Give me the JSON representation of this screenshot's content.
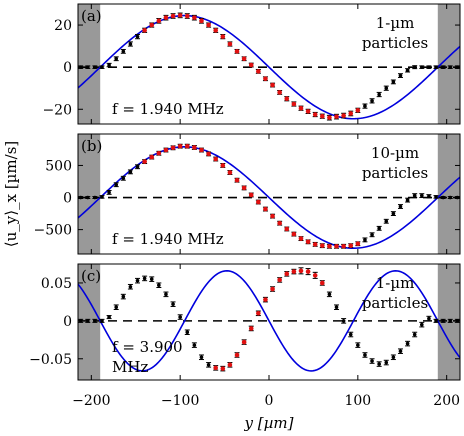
{
  "figure": {
    "xlabel": "y [µm]",
    "ylabel": "⟨u_y⟩_x [µm/s]",
    "x_ticks": [
      "−200",
      "−100",
      "0",
      "100",
      "200"
    ]
  },
  "chart_data": [
    {
      "type": "scatter",
      "panel_label": "(a)",
      "annotation_lines": [
        "1-µm",
        "particles"
      ],
      "freq_label": "f = 1.940 MHz",
      "xlim": [
        -215,
        215
      ],
      "ylim": [
        -27,
        30
      ],
      "yticks": [
        -20,
        0,
        20
      ],
      "ytick_labels": [
        "−20",
        "0",
        "20"
      ],
      "shaded_x": [
        [
          -215,
          -190
        ],
        [
          190,
          215
        ]
      ],
      "zero_line": "dashed",
      "series": [
        {
          "role": "black-points",
          "x": [
            -212,
            -204,
            -196,
            -188,
            -180,
            -172,
            -164,
            -156,
            -148,
            -140,
            -132,
            -124,
            -116,
            -108,
            -100,
            -92,
            -84,
            -76,
            -68,
            -60,
            -52,
            -44,
            -36,
            -28,
            -20,
            -12,
            -4,
            4,
            12,
            20,
            28,
            36,
            44,
            52,
            60,
            68,
            76,
            84,
            92,
            100,
            108,
            116,
            124,
            132,
            140,
            148,
            156,
            164,
            172,
            180,
            188,
            196,
            204,
            212
          ],
          "y": [
            0,
            0,
            0,
            0,
            1,
            4,
            7.5,
            11,
            14.5,
            17.5,
            20,
            22,
            23.5,
            24.3,
            24.6,
            24.3,
            23.5,
            22,
            20,
            17.5,
            14.5,
            11,
            7.5,
            4,
            1,
            -2,
            -5.5,
            -8.5,
            -12,
            -15,
            -17.5,
            -19.5,
            -21,
            -22.5,
            -23.3,
            -24,
            -23.5,
            -23,
            -22,
            -20.5,
            -18.5,
            -16,
            -13,
            -10,
            -7,
            -4,
            -1.5,
            0,
            0,
            0,
            0,
            0,
            0,
            0
          ],
          "err": [
            0.6,
            0.6,
            0.6,
            0.6,
            0.8,
            0.9,
            0.9,
            1.0,
            1.0,
            1.0,
            1.0,
            1.1,
            1.1,
            1.1,
            1.1,
            1.1,
            1.1,
            1.1,
            1.0,
            1.0,
            1.0,
            1.0,
            0.9,
            0.9,
            0.9,
            0.9,
            0.9,
            0.9,
            0.9,
            1.0,
            1.0,
            1.0,
            1.0,
            1.0,
            1.0,
            1.1,
            1.1,
            1.1,
            1.1,
            1.0,
            1.0,
            1.0,
            1.0,
            1.0,
            0.9,
            0.9,
            0.8,
            0.7,
            0.6,
            0.6,
            0.6,
            0.6,
            0.6,
            0.6
          ]
        },
        {
          "role": "red-points",
          "x": [
            -140,
            -132,
            -124,
            -116,
            -108,
            -100,
            -92,
            -84,
            -76,
            -68,
            -60,
            -52,
            -44,
            -36,
            -28,
            -20,
            -12,
            -4,
            4,
            12,
            20,
            28,
            36,
            44,
            52,
            60,
            68,
            76,
            84,
            92,
            100
          ],
          "y": [
            17.5,
            20,
            22,
            23.5,
            24.3,
            24.6,
            24.3,
            23.5,
            22,
            20,
            17.5,
            14.5,
            11,
            7.5,
            4,
            1,
            -2,
            -5.5,
            -8.5,
            -12,
            -15,
            -17.5,
            -19.5,
            -21,
            -22.5,
            -23.3,
            -24,
            -23.5,
            -23,
            -22,
            -20.5
          ]
        },
        {
          "role": "model-curve",
          "type": "sine",
          "amplitude": 24.5,
          "wavelength": 380,
          "phase_zero": 0
        }
      ]
    },
    {
      "type": "scatter",
      "panel_label": "(b)",
      "annotation_lines": [
        "10-µm",
        "particles"
      ],
      "freq_label": "f = 1.940 MHz",
      "xlim": [
        -215,
        215
      ],
      "ylim": [
        -880,
        990
      ],
      "yticks": [
        -500,
        0,
        500
      ],
      "ytick_labels": [
        "−500",
        "0",
        "500"
      ],
      "shaded_x": [
        [
          -215,
          -190
        ],
        [
          190,
          215
        ]
      ],
      "zero_line": "dashed",
      "series": [
        {
          "role": "black-points",
          "x": [
            -212,
            -204,
            -196,
            -188,
            -180,
            -172,
            -164,
            -156,
            -148,
            -140,
            -132,
            -124,
            -116,
            -108,
            -100,
            -92,
            -84,
            -76,
            -68,
            -60,
            -52,
            -44,
            -36,
            -28,
            -20,
            -12,
            -4,
            4,
            12,
            20,
            28,
            36,
            44,
            52,
            60,
            68,
            76,
            84,
            92,
            100,
            108,
            116,
            124,
            132,
            140,
            148,
            156,
            164,
            172,
            180,
            188,
            196,
            204,
            212
          ],
          "y": [
            0,
            0,
            0,
            10,
            80,
            200,
            300,
            400,
            480,
            560,
            630,
            690,
            740,
            775,
            800,
            800,
            780,
            740,
            680,
            600,
            500,
            390,
            270,
            150,
            40,
            -70,
            -180,
            -290,
            -400,
            -490,
            -570,
            -640,
            -690,
            -730,
            -750,
            -760,
            -760,
            -760,
            -750,
            -720,
            -660,
            -580,
            -480,
            -370,
            -250,
            -140,
            -40,
            30,
            30,
            20,
            10,
            0,
            0,
            0
          ],
          "err": [
            15,
            15,
            15,
            20,
            30,
            30,
            30,
            30,
            30,
            30,
            30,
            30,
            30,
            30,
            30,
            30,
            30,
            30,
            30,
            30,
            30,
            30,
            30,
            30,
            30,
            30,
            30,
            30,
            30,
            30,
            30,
            30,
            30,
            30,
            30,
            30,
            30,
            30,
            30,
            30,
            30,
            30,
            30,
            30,
            30,
            30,
            30,
            30,
            30,
            25,
            20,
            15,
            15,
            15
          ]
        },
        {
          "role": "red-points",
          "x": [
            -140,
            -132,
            -124,
            -116,
            -108,
            -100,
            -92,
            -84,
            -76,
            -68,
            -60,
            -52,
            -44,
            -36,
            -28,
            -20,
            -12,
            -4,
            4,
            12,
            20,
            28,
            36,
            44,
            52,
            60,
            68,
            76,
            84,
            92,
            100
          ],
          "y": [
            560,
            630,
            690,
            740,
            775,
            800,
            800,
            780,
            740,
            680,
            600,
            500,
            390,
            270,
            150,
            40,
            -70,
            -180,
            -290,
            -400,
            -490,
            -570,
            -640,
            -690,
            -730,
            -750,
            -760,
            -760,
            -760,
            -750,
            -720
          ]
        },
        {
          "role": "model-curve",
          "type": "sine",
          "amplitude": 790,
          "wavelength": 380,
          "phase_zero": 0
        }
      ]
    },
    {
      "type": "scatter",
      "panel_label": "(c)",
      "annotation_lines": [
        "1-µm",
        "particles"
      ],
      "freq_label_lines": [
        "f = 3.900",
        "MHz"
      ],
      "xlim": [
        -215,
        215
      ],
      "ylim": [
        -0.078,
        0.075
      ],
      "yticks": [
        -0.05,
        0,
        0.05
      ],
      "ytick_labels": [
        "−0.05",
        "0",
        "0.05"
      ],
      "shaded_x": [
        [
          -215,
          -190
        ],
        [
          190,
          215
        ]
      ],
      "zero_line": "dashed",
      "series": [
        {
          "role": "black-points",
          "x": [
            -212,
            -204,
            -196,
            -188,
            -180,
            -172,
            -164,
            -156,
            -148,
            -140,
            -132,
            -124,
            -116,
            -108,
            -100,
            -92,
            -84,
            -76,
            -68,
            -60,
            -52,
            -44,
            -36,
            -28,
            -20,
            -12,
            -4,
            4,
            12,
            20,
            28,
            36,
            44,
            52,
            60,
            68,
            76,
            84,
            92,
            100,
            108,
            116,
            124,
            132,
            140,
            148,
            156,
            164,
            172,
            180,
            188,
            196,
            204,
            212
          ],
          "y": [
            0,
            0,
            0,
            0,
            0.005,
            0.018,
            0.032,
            0.045,
            0.053,
            0.056,
            0.055,
            0.047,
            0.035,
            0.022,
            0.005,
            -0.015,
            -0.032,
            -0.048,
            -0.058,
            -0.062,
            -0.063,
            -0.058,
            -0.045,
            -0.028,
            -0.01,
            0.01,
            0.028,
            0.042,
            0.054,
            0.062,
            0.065,
            0.066,
            0.065,
            0.06,
            0.05,
            0.035,
            0.018,
            0.0,
            -0.018,
            -0.032,
            -0.045,
            -0.053,
            -0.057,
            -0.055,
            -0.048,
            -0.04,
            -0.03,
            -0.018,
            -0.005,
            0.003,
            0,
            0,
            0,
            0
          ],
          "err": [
            0.002,
            0.002,
            0.002,
            0.002,
            0.002,
            0.003,
            0.003,
            0.003,
            0.003,
            0.003,
            0.003,
            0.003,
            0.003,
            0.003,
            0.003,
            0.003,
            0.003,
            0.003,
            0.003,
            0.003,
            0.003,
            0.003,
            0.003,
            0.003,
            0.003,
            0.003,
            0.003,
            0.003,
            0.003,
            0.003,
            0.003,
            0.004,
            0.004,
            0.004,
            0.003,
            0.003,
            0.003,
            0.003,
            0.003,
            0.003,
            0.003,
            0.003,
            0.003,
            0.003,
            0.003,
            0.003,
            0.003,
            0.003,
            0.003,
            0.003,
            0.002,
            0.002,
            0.002,
            0.002
          ]
        },
        {
          "role": "red-points",
          "x": [
            -60,
            -52,
            -44,
            -36,
            -28,
            -20,
            -12,
            -4,
            4,
            12,
            20,
            28,
            36,
            44,
            52,
            60
          ],
          "y": [
            -0.062,
            -0.063,
            -0.058,
            -0.045,
            -0.028,
            -0.01,
            0.01,
            0.028,
            0.042,
            0.054,
            0.062,
            0.065,
            0.066,
            0.065,
            0.06,
            0.05
          ]
        },
        {
          "role": "model-curve",
          "type": "sine",
          "amplitude": 0.066,
          "wavelength": 190,
          "phase_zero": 0
        }
      ]
    }
  ]
}
